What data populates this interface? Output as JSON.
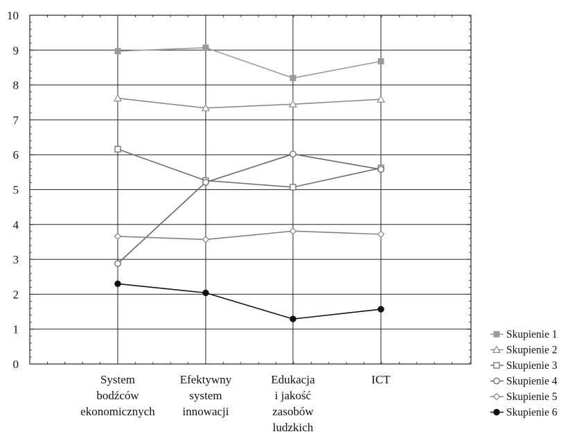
{
  "chart_data": {
    "type": "line",
    "categories": [
      [
        "System",
        "bodźców",
        "ekonomicznych"
      ],
      [
        "Efektywny",
        "system",
        "innowacji"
      ],
      [
        "Edukacja",
        "i jakość",
        "zasobów",
        "ludzkich"
      ],
      [
        "ICT"
      ]
    ],
    "ylim": [
      0,
      10
    ],
    "yticks": [
      0,
      1,
      2,
      3,
      4,
      5,
      6,
      7,
      8,
      9,
      10
    ],
    "grid": true,
    "legend_position": "bottom-right",
    "series": [
      {
        "name": "Skupienie 1",
        "marker": "square-filled",
        "color": "#9a9a9a",
        "values": [
          8.97,
          9.07,
          8.2,
          8.68
        ]
      },
      {
        "name": "Skupienie 2",
        "marker": "triangle-open",
        "color": "#8a8a8a",
        "values": [
          7.62,
          7.34,
          7.45,
          7.59
        ]
      },
      {
        "name": "Skupienie 3",
        "marker": "square-open",
        "color": "#6e6e6e",
        "values": [
          6.16,
          5.26,
          5.07,
          5.62
        ]
      },
      {
        "name": "Skupienie 4",
        "marker": "circle-open",
        "color": "#666666",
        "values": [
          2.88,
          5.21,
          6.02,
          5.58
        ]
      },
      {
        "name": "Skupienie 5",
        "marker": "diamond-open",
        "color": "#808080",
        "values": [
          3.66,
          3.57,
          3.81,
          3.72
        ]
      },
      {
        "name": "Skupienie 6",
        "marker": "circle-filled",
        "color": "#111111",
        "values": [
          2.3,
          2.04,
          1.29,
          1.57
        ]
      }
    ]
  }
}
